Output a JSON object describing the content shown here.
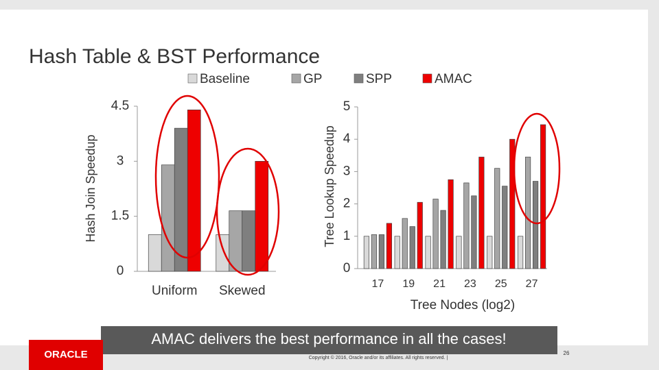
{
  "title": "Hash Table & BST Performance",
  "chart_data": [
    {
      "type": "bar",
      "y_label": "Hash Join Speedup",
      "categories": [
        "Uniform",
        "Skewed"
      ],
      "series": [
        {
          "name": "Baseline",
          "color": "#d9d9d9",
          "values": [
            1,
            1
          ]
        },
        {
          "name": "GP",
          "color": "#a6a6a6",
          "values": [
            2.9,
            1.65
          ]
        },
        {
          "name": "SPP",
          "color": "#7f7f7f",
          "values": [
            3.9,
            1.65
          ]
        },
        {
          "name": "AMAC",
          "color": "#ee0000",
          "values": [
            4.4,
            3.0
          ]
        }
      ],
      "ylim": [
        0,
        4.5
      ],
      "yticks": [
        0,
        1.5,
        3,
        4.5
      ]
    },
    {
      "type": "bar",
      "y_label": "Tree Lookup Speedup",
      "x_label": "Tree Nodes (log2)",
      "categories": [
        "17",
        "19",
        "21",
        "23",
        "25",
        "27"
      ],
      "series": [
        {
          "color": "#d9d9d9",
          "values": [
            1,
            1,
            1,
            1,
            1,
            1
          ]
        },
        {
          "color": "#a6a6a6",
          "values": [
            1.05,
            1.55,
            2.15,
            2.65,
            3.1,
            3.45
          ]
        },
        {
          "color": "#7f7f7f",
          "values": [
            1.05,
            1.3,
            1.8,
            2.25,
            2.55,
            2.7
          ]
        },
        {
          "color": "#ee0000",
          "values": [
            1.4,
            2.05,
            2.75,
            3.45,
            4.0,
            4.45
          ]
        }
      ],
      "ylim": [
        0,
        5
      ],
      "yticks": [
        0,
        1,
        2,
        3,
        4,
        5
      ]
    }
  ],
  "callout": "AMAC delivers the best performance in all the cases!",
  "footer": {
    "logo": "ORACLE",
    "copyright": "Copyright © 2016, Oracle and/or its affiliates. All rights reserved.  |",
    "page": "26"
  }
}
